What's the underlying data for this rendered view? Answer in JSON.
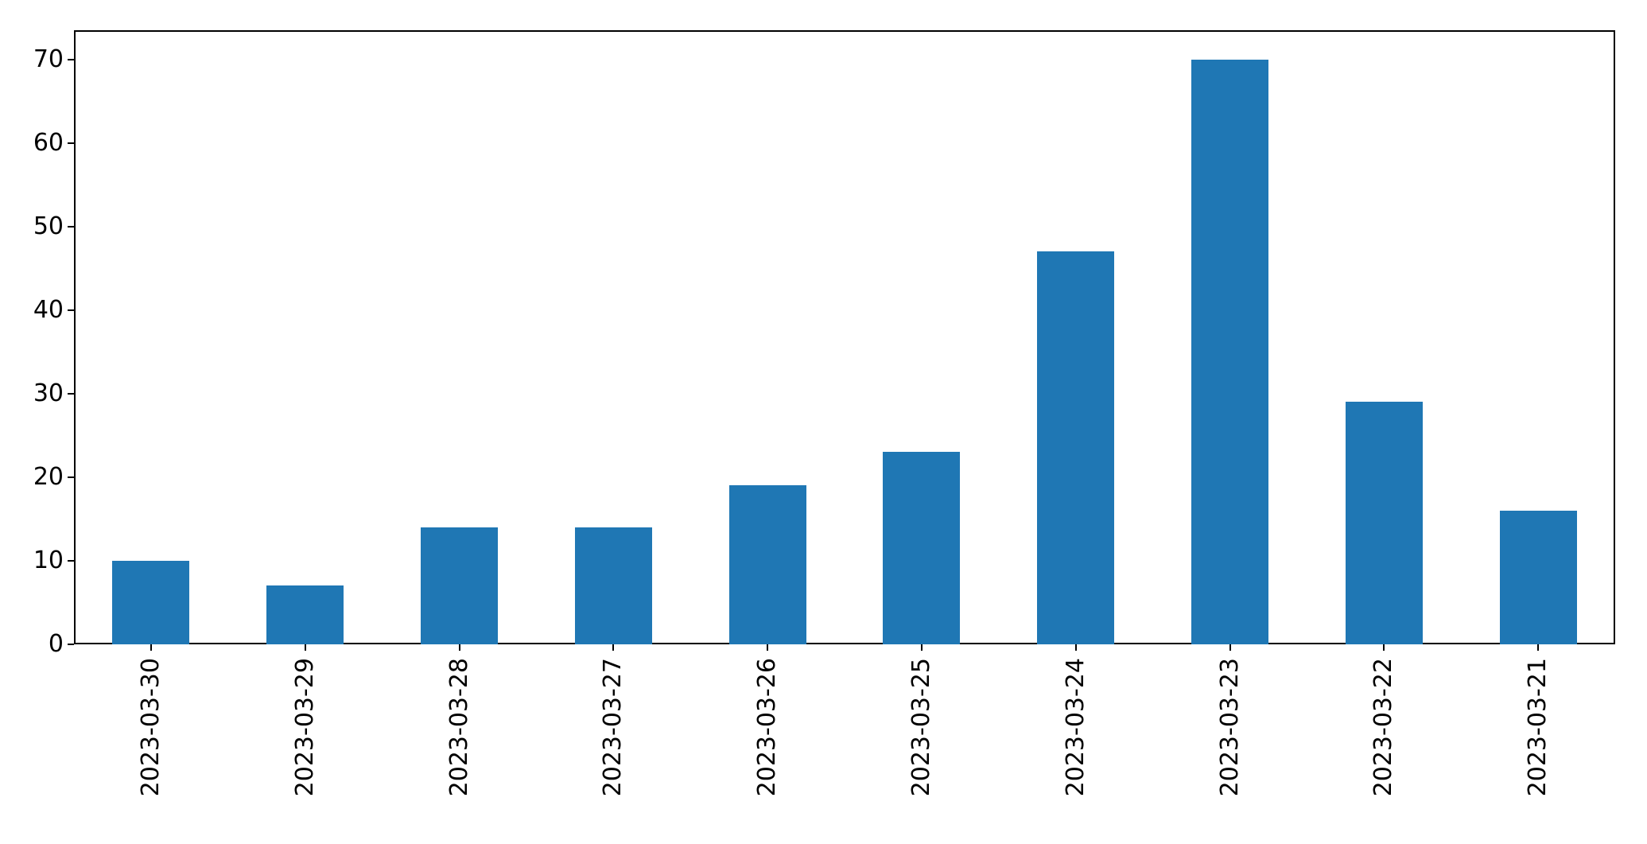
{
  "chart_data": {
    "type": "bar",
    "title": "",
    "xlabel": "",
    "ylabel": "",
    "categories": [
      "2023-03-30",
      "2023-03-29",
      "2023-03-28",
      "2023-03-27",
      "2023-03-26",
      "2023-03-25",
      "2023-03-24",
      "2023-03-23",
      "2023-03-22",
      "2023-03-21"
    ],
    "values": [
      10,
      7,
      14,
      14,
      19,
      23,
      47,
      70,
      29,
      16
    ],
    "yticks": [
      0,
      10,
      20,
      30,
      40,
      50,
      60,
      70
    ],
    "ylim": [
      0,
      73.5
    ],
    "bar_color": "#1f77b4",
    "axis_color": "#000000",
    "background_color": "#ffffff",
    "grid": false,
    "legend_position": "none",
    "x_tick_label_rotation_deg": 90,
    "bar_width_fraction": 0.5
  }
}
